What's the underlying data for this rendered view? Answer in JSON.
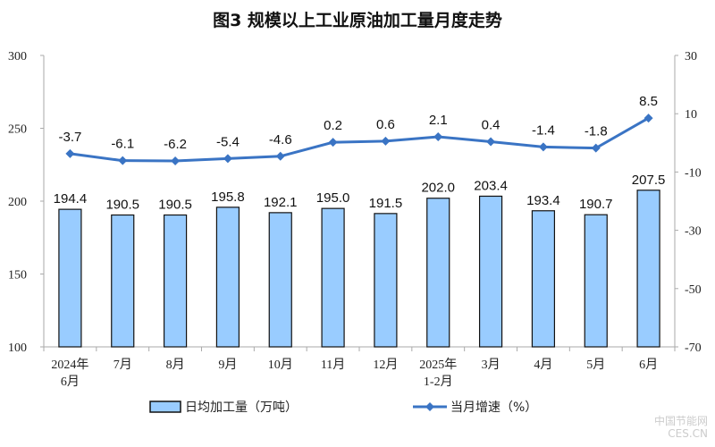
{
  "watermark": {
    "line1": "中国节能网",
    "line2": "CES.CN"
  },
  "chart_data": {
    "type": "bar+line",
    "title": "图3  规模以上工业原油加工量月度走势",
    "categories": [
      "2024年\n6月",
      "7月",
      "8月",
      "9月",
      "10月",
      "11月",
      "12月",
      "2025年\n1-2月",
      "3月",
      "4月",
      "5月",
      "6月"
    ],
    "series": [
      {
        "name": "日均加工量（万吨）",
        "type": "bar",
        "axis": "left",
        "color": "#99CCFF",
        "values": [
          194.4,
          190.5,
          190.5,
          195.8,
          192.1,
          195.0,
          191.5,
          202.0,
          203.4,
          193.4,
          190.7,
          207.5
        ]
      },
      {
        "name": "当月增速（%）",
        "type": "line",
        "axis": "right",
        "color": "#3A74C4",
        "values": [
          -3.7,
          -6.1,
          -6.2,
          -5.4,
          -4.6,
          0.2,
          0.6,
          2.1,
          0.4,
          -1.4,
          -1.8,
          8.5
        ]
      }
    ],
    "left_axis": {
      "range": [
        100,
        300
      ],
      "ticks": [
        100,
        150,
        200,
        250,
        300
      ]
    },
    "right_axis": {
      "range": [
        -70,
        30
      ],
      "ticks": [
        -70,
        -50,
        -30,
        -10,
        10,
        30
      ]
    },
    "grid": false,
    "legend": "bottom"
  }
}
